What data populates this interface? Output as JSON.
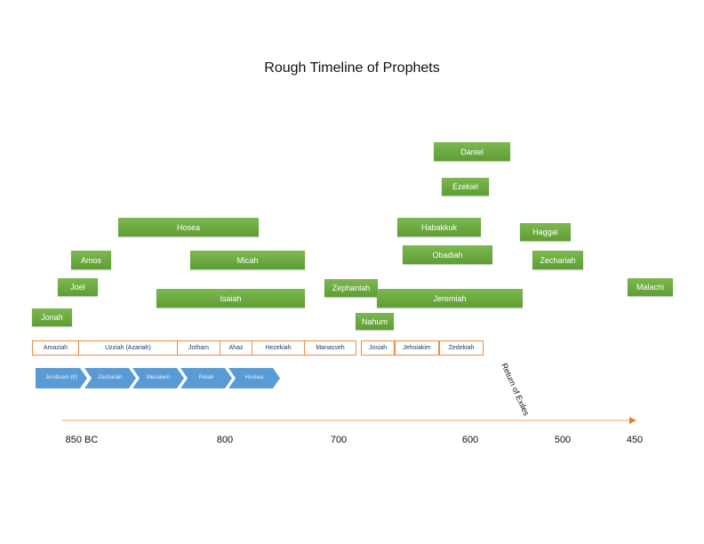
{
  "title": "Rough Timeline of Prophets",
  "prophets": [
    "Daniel",
    "Ezekiel",
    "Hosea",
    "Habakkuk",
    "Haggai",
    "Amos",
    "Micah",
    "Obadiah",
    "Zechariah",
    "Joel",
    "Zephaniah",
    "Malachi",
    "Isaiah",
    "Jeremiah",
    "Jonah",
    "Nahum"
  ],
  "judah_kings": [
    "Amaziah",
    "Uzziah (Azariah)",
    "Jotham",
    "Ahaz",
    "Hezekiah",
    "Manasseh",
    "Josiah",
    "Jehoiakim",
    "Zedekiah"
  ],
  "israel_kings": [
    "Jeroboam (II)",
    "Zechariah",
    "Menakem",
    "Pekah",
    "Hoshea"
  ],
  "axis": {
    "ticks": [
      "850 BC",
      "800",
      "700",
      "600",
      "500",
      "450"
    ],
    "annotation": "Return of Exiles"
  },
  "colors": {
    "prophet": "#70ad47",
    "judah_border": "#ed7d31",
    "israel": "#5b9bd5",
    "axis": "#f4b183"
  }
}
